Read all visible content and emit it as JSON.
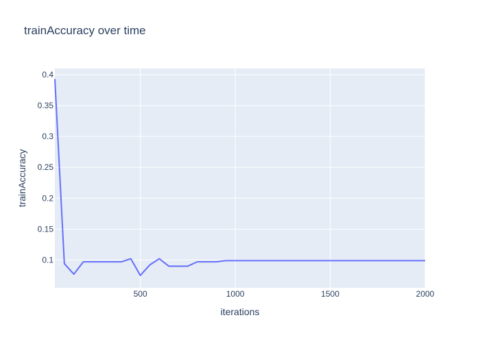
{
  "chart_data": {
    "type": "line",
    "title": "trainAccuracy over time",
    "xlabel": "iterations",
    "ylabel": "trainAccuracy",
    "xlim": [
      50,
      2000
    ],
    "ylim": [
      0.055,
      0.41
    ],
    "xticks": [
      500,
      1000,
      1500,
      2000
    ],
    "yticks": [
      0.1,
      0.15,
      0.2,
      0.25,
      0.3,
      0.35,
      0.4
    ],
    "ytick_labels": [
      "0.1",
      "0.15",
      "0.2",
      "0.25",
      "0.3",
      "0.35",
      "0.4"
    ],
    "grid": true,
    "series": [
      {
        "color": "#636efa",
        "x": [
          50,
          100,
          150,
          200,
          250,
          300,
          350,
          400,
          450,
          500,
          550,
          600,
          650,
          700,
          750,
          800,
          850,
          900,
          950,
          1000,
          1050,
          1100,
          1150,
          1200,
          1250,
          1300,
          1350,
          1400,
          1450,
          1500,
          1550,
          1600,
          1650,
          1700,
          1750,
          1800,
          1850,
          1900,
          1950,
          2000
        ],
        "y": [
          0.393,
          0.094,
          0.077,
          0.097,
          0.097,
          0.097,
          0.097,
          0.097,
          0.102,
          0.075,
          0.092,
          0.102,
          0.09,
          0.09,
          0.09,
          0.097,
          0.097,
          0.097,
          0.099,
          0.099,
          0.099,
          0.099,
          0.099,
          0.099,
          0.099,
          0.099,
          0.099,
          0.099,
          0.099,
          0.099,
          0.099,
          0.099,
          0.099,
          0.099,
          0.099,
          0.099,
          0.099,
          0.099,
          0.099,
          0.099
        ]
      }
    ],
    "colors": {
      "plot_background": "#e5ecf6",
      "grid": "#ffffff",
      "text": "#2a3f5f",
      "tick_text": "#2a3f5f"
    }
  }
}
